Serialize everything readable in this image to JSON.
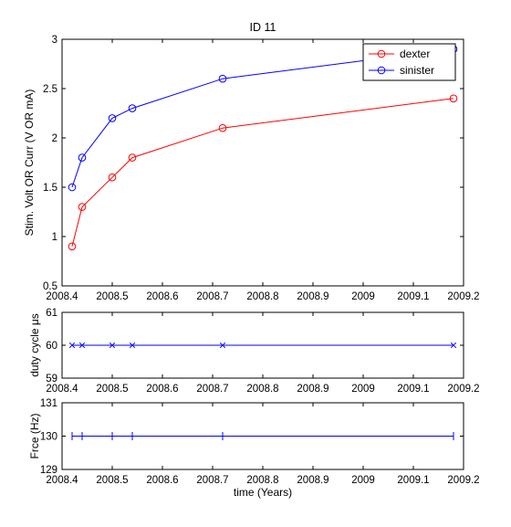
{
  "chart_data": [
    {
      "type": "line",
      "title": "ID 11",
      "xlabel": "",
      "ylabel": "Stim. Volt OR Curr (V OR mA)",
      "xlim": [
        2008.4,
        2009.2
      ],
      "ylim": [
        0.5,
        3
      ],
      "xticks": [
        "2008.4",
        "2008.5",
        "2008.6",
        "2008.7",
        "2008.8",
        "2008.9",
        "2009",
        "2009.1",
        "2009.2"
      ],
      "yticks": [
        "0.5",
        "1",
        "1.5",
        "2",
        "2.5",
        "3"
      ],
      "legend_position": "top-right",
      "series": [
        {
          "name": "dexter",
          "color": "#ff0000",
          "marker": "circle",
          "x": [
            2008.42,
            2008.44,
            2008.5,
            2008.54,
            2008.72,
            2009.18
          ],
          "y": [
            0.9,
            1.3,
            1.6,
            1.8,
            2.1,
            2.4
          ]
        },
        {
          "name": "sinister",
          "color": "#0000ff",
          "marker": "circle",
          "x": [
            2008.42,
            2008.44,
            2008.5,
            2008.54,
            2008.72,
            2009.18
          ],
          "y": [
            1.5,
            1.8,
            2.2,
            2.3,
            2.6,
            2.9
          ]
        }
      ]
    },
    {
      "type": "line",
      "title": "",
      "xlabel": "",
      "ylabel": "duty cycle μs",
      "xlim": [
        2008.4,
        2009.2
      ],
      "ylim": [
        59,
        61
      ],
      "xticks": [
        "2008.4",
        "2008.5",
        "2008.6",
        "2008.7",
        "2008.8",
        "2008.9",
        "2009",
        "2009.1",
        "2009.2"
      ],
      "yticks": [
        "59",
        "60",
        "61"
      ],
      "series": [
        {
          "color": "#0000ff",
          "marker": "x",
          "x": [
            2008.42,
            2008.44,
            2008.5,
            2008.54,
            2008.72,
            2009.18
          ],
          "y": [
            60,
            60,
            60,
            60,
            60,
            60
          ]
        }
      ]
    },
    {
      "type": "line",
      "title": "",
      "xlabel": "time (Years)",
      "ylabel": "Frce (Hz)",
      "xlim": [
        2008.4,
        2009.2
      ],
      "ylim": [
        129,
        131
      ],
      "xticks": [
        "2008.4",
        "2008.5",
        "2008.6",
        "2008.7",
        "2008.8",
        "2008.9",
        "2009",
        "2009.1",
        "2009.2"
      ],
      "yticks": [
        "129",
        "130",
        "131"
      ],
      "series": [
        {
          "color": "#0000ff",
          "marker": "vline",
          "x": [
            2008.42,
            2008.44,
            2008.5,
            2008.54,
            2008.72,
            2009.18
          ],
          "y": [
            130,
            130,
            130,
            130,
            130,
            130
          ]
        }
      ]
    }
  ]
}
